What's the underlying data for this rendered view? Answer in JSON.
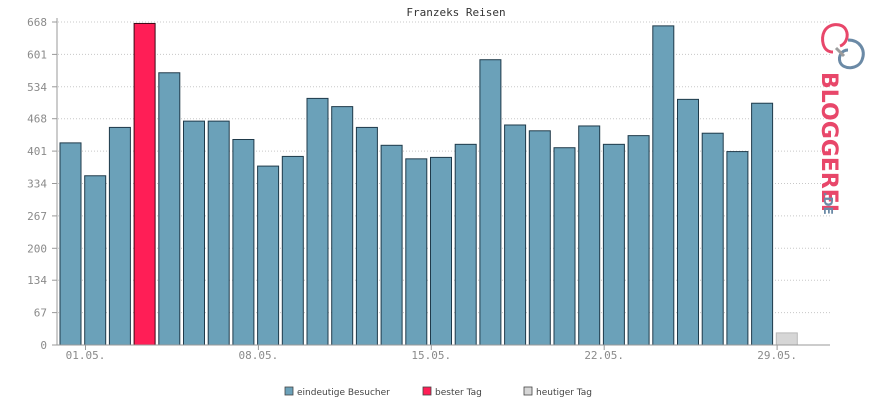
{
  "chart_data": {
    "type": "bar",
    "title": "Franzeks Reisen",
    "xlabel": "",
    "ylabel": "",
    "ylim": [
      0,
      668
    ],
    "yticks": [
      0,
      67,
      134,
      200,
      267,
      334,
      401,
      468,
      534,
      601,
      668
    ],
    "xtick_labels": [
      "01.05.",
      "08.05.",
      "15.05.",
      "22.05.",
      "29.05."
    ],
    "grid": true,
    "legend_position": "bottom",
    "values": [
      418,
      350,
      450,
      665,
      563,
      463,
      463,
      425,
      370,
      390,
      510,
      493,
      450,
      413,
      385,
      388,
      415,
      590,
      455,
      443,
      408,
      453,
      415,
      433,
      660,
      508,
      438,
      400,
      500,
      25
    ],
    "highlight": [
      3
    ],
    "today": [
      29
    ],
    "series": [
      {
        "name": "eindeutige Besucher",
        "color": "#6ba1b9"
      },
      {
        "name": "bester Tag",
        "color": "#ff1e56"
      },
      {
        "name": "heutiger Tag",
        "color": "#d6d6d6"
      }
    ]
  },
  "brand": {
    "text": "BLOGGEREI",
    "suffix": ".DE",
    "logo_icon": "bloggerei-logo-icon",
    "colors": {
      "red": "#e8476a",
      "blue": "#6b8aa6",
      "gray": "#9c9c9c"
    }
  }
}
